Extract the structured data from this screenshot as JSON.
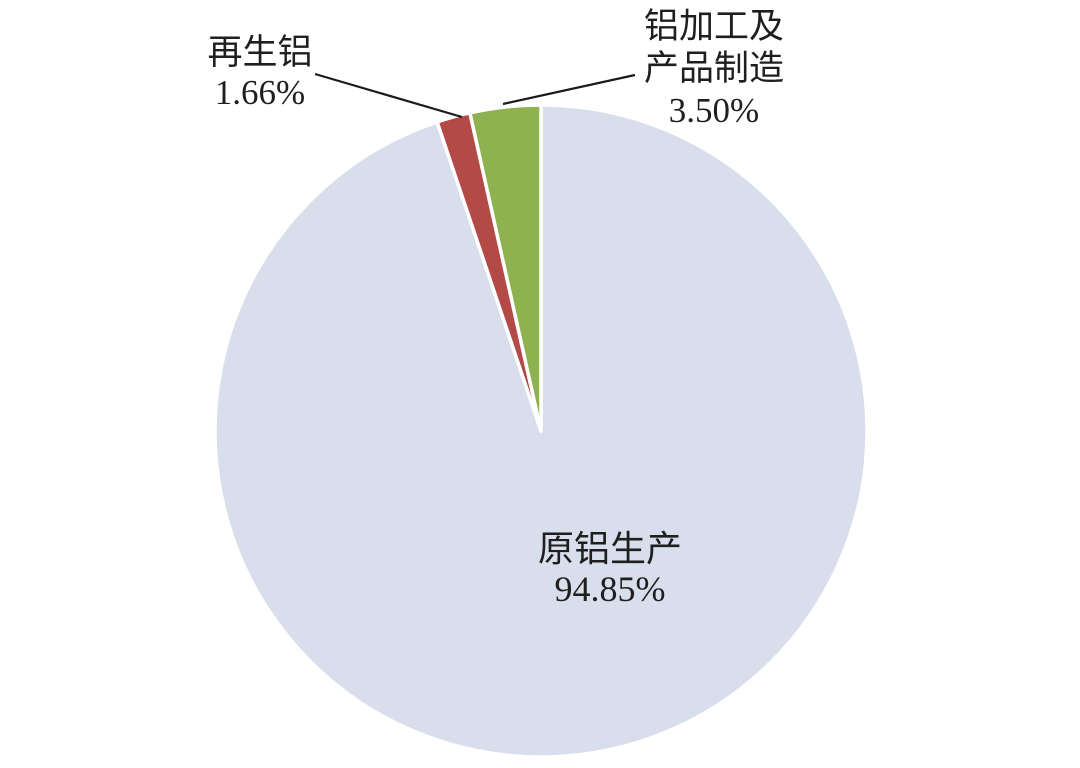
{
  "figure": {
    "background_color": "#ffffff",
    "text_color": "#1f1f1f"
  },
  "chart_data": {
    "type": "pie",
    "title": "",
    "unit": "%",
    "categories": [
      "原铝生产",
      "再生铝",
      "铝加工及产品制造"
    ],
    "values": [
      94.85,
      1.66,
      3.5
    ],
    "slices": [
      {
        "id": "primary-aluminum-production",
        "label": "原铝生产",
        "value": 94.85,
        "value_label": "94.85%",
        "color": "#d8deeb"
      },
      {
        "id": "recycled-aluminum",
        "label": "再生铝",
        "value": 1.66,
        "value_label": "1.66%",
        "color": "#b34a46"
      },
      {
        "id": "aluminum-processing-manufacturing",
        "label": "铝加工及产品制造",
        "value": 3.5,
        "value_label": "3.50%",
        "color": "#8fb251"
      }
    ],
    "start_angle_deg": 0,
    "direction": "clockwise",
    "slice_border_color": "#ffffff",
    "slice_border_width": 3.5,
    "leader_line_color": "#1b1b1b",
    "legend_position": "none",
    "grid": false
  },
  "callouts": {
    "recycled": {
      "lines": [
        "再生铝",
        "1.66%"
      ]
    },
    "processing": {
      "lines": [
        "铝加工及",
        "产品制造",
        "3.50%"
      ]
    },
    "primary": {
      "lines": [
        "原铝生产",
        "94.85%"
      ]
    }
  }
}
